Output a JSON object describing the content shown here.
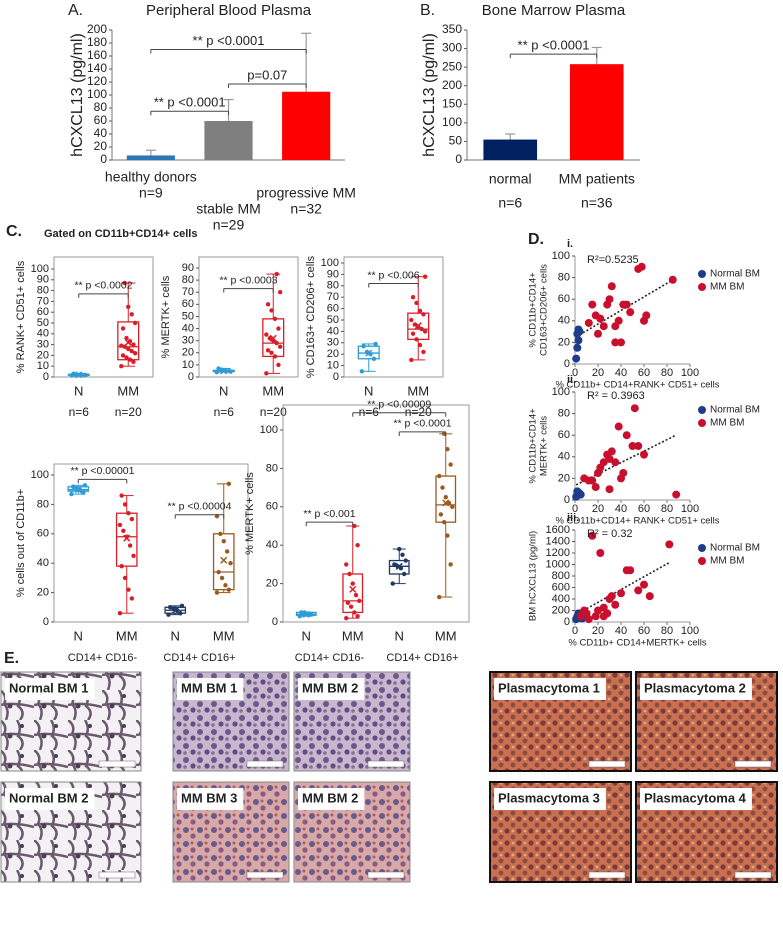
{
  "chart_data": [
    {
      "type": "bar",
      "panel": "A.",
      "title": "Peripheral Blood Plasma",
      "y_label": "hCXCL13 (pg/ml)",
      "categories": [
        "healthy donors",
        "stable MM",
        "progressive MM"
      ],
      "n_labels": [
        "n=9",
        "n=29",
        "n=32"
      ],
      "values": [
        7,
        60,
        105
      ],
      "errors": [
        8,
        33,
        90
      ],
      "colors": [
        "#2e75b6",
        "#7f7f7f",
        "#ff0000"
      ],
      "ylim": [
        0,
        200
      ],
      "yticks": [
        0,
        20,
        40,
        60,
        80,
        100,
        120,
        140,
        160,
        180,
        200
      ],
      "annotations": [
        {
          "text": "** p <0.0001",
          "from": 0,
          "to": 1,
          "y": 75
        },
        {
          "text": "p=0.07",
          "from": 1,
          "to": 2,
          "y": 117
        },
        {
          "text": "** p <0.0001",
          "from": 0,
          "to": 2,
          "y": 170
        }
      ]
    },
    {
      "type": "bar",
      "panel": "B.",
      "title": "Bone Marrow Plasma",
      "y_label": "hCXCL13 (pg/ml)",
      "categories": [
        "normal",
        "MM patients"
      ],
      "n_labels": [
        "n=6",
        "n=36"
      ],
      "values": [
        55,
        258
      ],
      "errors": [
        15,
        45
      ],
      "colors": [
        "#002060",
        "#ff0000"
      ],
      "ylim": [
        0,
        350
      ],
      "yticks": [
        0,
        50,
        100,
        150,
        200,
        250,
        300,
        350
      ],
      "annotations": [
        {
          "text": "** p <0.0001",
          "from": 0,
          "to": 1,
          "y": 285
        }
      ]
    },
    {
      "type": "box",
      "panel": "C.",
      "subtitle": "Gated on CD11b+CD14+ cells",
      "y_label": "% RANK+ CD51+ cells",
      "ylim": [
        0,
        100
      ],
      "yticks": [
        0,
        10,
        20,
        30,
        40,
        50,
        60,
        70,
        80,
        90,
        100
      ],
      "groups": [
        {
          "name": "N",
          "n": "n=6",
          "color": "#2e9bd6",
          "whislo": 1,
          "q1": 1.5,
          "med": 2,
          "q3": 2.5,
          "whishi": 3,
          "mean": 2,
          "points": [
            1.5,
            2,
            2.5,
            2,
            3,
            1.8
          ]
        },
        {
          "name": "MM",
          "n": "n=20",
          "color": "#d81e28",
          "whislo": 10,
          "q1": 16,
          "med": 28,
          "q3": 51,
          "whishi": 87,
          "mean": 32,
          "points": [
            10,
            14,
            16,
            18,
            20,
            22,
            24,
            26,
            28,
            29,
            30,
            33,
            36,
            45,
            50,
            58,
            65,
            87
          ]
        }
      ],
      "annotations": [
        {
          "text": "** p <0.0002",
          "from": 0,
          "to": 1,
          "y": 77
        }
      ]
    },
    {
      "type": "box",
      "y_label": "% MERTK+ cells",
      "ylim": [
        0,
        90
      ],
      "yticks": [
        0,
        10,
        20,
        30,
        40,
        50,
        60,
        70,
        80,
        90
      ],
      "groups": [
        {
          "name": "N",
          "n": "n=6",
          "color": "#2e9bd6",
          "whislo": 4,
          "q1": 4.5,
          "med": 5,
          "q3": 5.5,
          "whishi": 7,
          "mean": 5,
          "points": [
            4,
            5,
            5,
            6,
            7,
            4.5
          ]
        },
        {
          "name": "MM",
          "n": "n=20",
          "color": "#d81e28",
          "whislo": 3,
          "q1": 17,
          "med": 28,
          "q3": 48,
          "whishi": 85,
          "mean": 32,
          "points": [
            3,
            10,
            17,
            20,
            22,
            25,
            28,
            30,
            32,
            35,
            40,
            48,
            55,
            60,
            70,
            85
          ]
        }
      ],
      "annotations": [
        {
          "text": "** p <0.0003",
          "from": 0,
          "to": 1,
          "y": 73
        }
      ]
    },
    {
      "type": "box",
      "y_label": "% CD163+ CD206+ cells",
      "ylim": [
        0,
        100
      ],
      "yticks": [
        0,
        10,
        20,
        30,
        40,
        50,
        60,
        70,
        80,
        90,
        100
      ],
      "groups": [
        {
          "name": "N",
          "n": "n=6",
          "color": "#2e9bd6",
          "whislo": 5,
          "q1": 16,
          "med": 21,
          "q3": 27,
          "whishi": 29,
          "mean": 21,
          "points": [
            5,
            16,
            20,
            22,
            27,
            29
          ]
        },
        {
          "name": "MM",
          "n": "n=20",
          "color": "#d81e28",
          "whislo": 15,
          "q1": 33,
          "med": 42,
          "q3": 56,
          "whishi": 88,
          "mean": 45,
          "points": [
            15,
            22,
            28,
            33,
            38,
            40,
            42,
            44,
            46,
            50,
            55,
            58,
            65,
            70,
            88
          ]
        }
      ],
      "annotations": [
        {
          "text": "** p <0.006",
          "from": 0,
          "to": 1,
          "y": 82
        }
      ]
    },
    {
      "type": "box",
      "y_label": "% cells out of CD11b+",
      "ylim": [
        0,
        100
      ],
      "yticks": [
        0,
        20,
        40,
        60,
        80,
        100
      ],
      "sections": [
        "CD14+ CD16-",
        "CD14+ CD16+"
      ],
      "groups": [
        {
          "name": "N",
          "color": "#2e9bd6",
          "whislo": 87,
          "q1": 89,
          "med": 90,
          "q3": 92,
          "whishi": 93,
          "mean": 90,
          "points": [
            87,
            88,
            90,
            91,
            92,
            93
          ]
        },
        {
          "name": "MM",
          "color": "#d81e28",
          "whislo": 6,
          "q1": 38,
          "med": 58,
          "q3": 74,
          "whishi": 86,
          "mean": 57,
          "points": [
            6,
            16,
            22,
            30,
            38,
            45,
            52,
            58,
            62,
            66,
            70,
            74,
            80,
            86
          ]
        },
        {
          "name": "N",
          "color": "#1f3864",
          "whislo": 5,
          "q1": 6,
          "med": 8,
          "q3": 10,
          "whishi": 11,
          "mean": 8,
          "points": [
            5,
            6,
            8,
            9,
            10,
            11
          ]
        },
        {
          "name": "MM",
          "color": "#9c5a1e",
          "whislo": 20,
          "q1": 22,
          "med": 34,
          "q3": 60,
          "whishi": 94,
          "mean": 42,
          "points": [
            20,
            22,
            25,
            30,
            34,
            40,
            48,
            55,
            60,
            72,
            94
          ]
        }
      ],
      "annotations": [
        {
          "text": "** p <0.00001",
          "from": 0,
          "to": 1,
          "y": 97
        },
        {
          "text": "** p <0.00004",
          "from": 2,
          "to": 3,
          "y": 73
        }
      ]
    },
    {
      "type": "box",
      "y_label": "% MERTK+ cells",
      "ylim": [
        0,
        100
      ],
      "yticks": [
        0,
        20,
        40,
        60,
        80,
        100
      ],
      "sections": [
        "CD14+ CD16-",
        "CD14+ CD16+"
      ],
      "groups": [
        {
          "name": "N",
          "color": "#2e9bd6",
          "whislo": 3,
          "q1": 3.5,
          "med": 4,
          "q3": 5,
          "whishi": 5,
          "mean": 4,
          "points": [
            3,
            4,
            4,
            5,
            5
          ]
        },
        {
          "name": "MM",
          "color": "#d81e28",
          "whislo": 2,
          "q1": 5,
          "med": 11,
          "q3": 25,
          "whishi": 50,
          "mean": 17,
          "points": [
            2,
            3,
            5,
            8,
            10,
            11,
            14,
            20,
            25,
            30,
            40,
            50
          ]
        },
        {
          "name": "N",
          "color": "#1f3864",
          "whislo": 20,
          "q1": 25,
          "med": 29,
          "q3": 32,
          "whishi": 38,
          "mean": 29,
          "points": [
            20,
            25,
            28,
            29,
            30,
            32,
            35,
            38
          ]
        },
        {
          "name": "MM",
          "color": "#9c5a1e",
          "whislo": 13,
          "q1": 52,
          "med": 61,
          "q3": 76,
          "whishi": 98,
          "mean": 62,
          "points": [
            13,
            30,
            45,
            52,
            56,
            60,
            62,
            65,
            70,
            76,
            82,
            90,
            98
          ]
        }
      ],
      "annotations": [
        {
          "text": "** p <0.001",
          "from": 0,
          "to": 1,
          "y": 52
        },
        {
          "text": "** p <0.0001",
          "from": 2,
          "to": 3,
          "y": 99
        },
        {
          "text": "** p <0.00009",
          "from": 1,
          "to": 3,
          "y": 109
        }
      ]
    },
    {
      "type": "scatter",
      "panel": "D.",
      "sub": "i.",
      "r2_label": "R²=0.5235",
      "x_label": "% CD11b+ CD14+RANK+ CD51+ cells",
      "y_label": [
        "% CD11b+CD14+",
        "CD163+CD206+ cells"
      ],
      "xlim": [
        0,
        100
      ],
      "xticks": [
        0,
        20,
        40,
        60,
        80,
        100
      ],
      "ylim": [
        0,
        100
      ],
      "yticks": [
        0,
        20,
        40,
        60,
        80,
        100
      ],
      "series": [
        {
          "name": "Normal BM",
          "color": "#1f3c88",
          "x": [
            1,
            2,
            3,
            2,
            4,
            3
          ],
          "y": [
            5,
            15,
            22,
            28,
            30,
            32
          ]
        },
        {
          "name": "MM BM",
          "color": "#c8102e",
          "x": [
            12,
            15,
            18,
            20,
            22,
            25,
            28,
            30,
            32,
            35,
            38,
            40,
            42,
            45,
            48,
            55,
            58,
            60,
            62,
            85,
            35
          ],
          "y": [
            38,
            55,
            45,
            28,
            42,
            35,
            55,
            60,
            72,
            35,
            40,
            20,
            55,
            55,
            48,
            88,
            90,
            40,
            45,
            78,
            20
          ]
        }
      ]
    },
    {
      "type": "scatter",
      "sub": "ii.",
      "r2_label": "R² = 0.3963",
      "x_label": "% CD11b+CD14+ RANK+ CD51+ cells",
      "y_label": [
        "% CD11b+CD14+",
        "MERTK+ cells"
      ],
      "xlim": [
        0,
        100
      ],
      "xticks": [
        0,
        20,
        40,
        60,
        80,
        100
      ],
      "ylim": [
        0,
        100
      ],
      "yticks": [
        0,
        20,
        40,
        60,
        80,
        100
      ],
      "series": [
        {
          "name": "Normal BM",
          "color": "#1f3c88",
          "x": [
            1,
            2,
            3,
            4,
            2,
            5
          ],
          "y": [
            3,
            5,
            7,
            6,
            8,
            5
          ]
        },
        {
          "name": "MM BM",
          "color": "#c8102e",
          "x": [
            8,
            12,
            15,
            18,
            20,
            22,
            25,
            28,
            30,
            32,
            35,
            38,
            40,
            42,
            45,
            50,
            52,
            55,
            60,
            88,
            30
          ],
          "y": [
            20,
            18,
            18,
            12,
            25,
            30,
            35,
            42,
            10,
            45,
            35,
            68,
            20,
            25,
            60,
            50,
            85,
            50,
            42,
            5,
            38
          ]
        }
      ]
    },
    {
      "type": "scatter",
      "sub": "iii.",
      "r2_label": "R² = 0.32",
      "x_label": "% CD11b+ CD14+MERTK+ cells",
      "y_label": [
        "BM hCXCL13 (pg/ml)"
      ],
      "xlim": [
        0,
        100
      ],
      "xticks": [
        0,
        20,
        40,
        60,
        80,
        100
      ],
      "ylim": [
        0,
        1600
      ],
      "yticks": [
        0,
        200,
        400,
        600,
        800,
        1000,
        1200,
        1400,
        1600
      ],
      "series": [
        {
          "name": "Normal BM",
          "color": "#1f3c88",
          "x": [
            1,
            2,
            3,
            5,
            4,
            6
          ],
          "y": [
            50,
            100,
            150,
            80,
            120,
            60
          ]
        },
        {
          "name": "MM BM",
          "color": "#c8102e",
          "x": [
            5,
            8,
            10,
            12,
            15,
            18,
            20,
            22,
            25,
            28,
            30,
            32,
            35,
            40,
            45,
            48,
            55,
            60,
            65,
            82,
            25
          ],
          "y": [
            100,
            200,
            150,
            50,
            1500,
            100,
            200,
            1200,
            250,
            150,
            400,
            450,
            300,
            500,
            900,
            900,
            550,
            650,
            450,
            1350,
            100
          ]
        }
      ]
    }
  ],
  "histology": {
    "panel": "E.",
    "images": [
      "Normal BM 1",
      "MM BM 1",
      "MM BM 2",
      "Plasmacytoma 1",
      "Plasmacytoma 2",
      "Normal BM 2",
      "MM BM 3",
      "MM BM 2",
      "Plasmacytoma 3",
      "Plasmacytoma 4"
    ]
  }
}
